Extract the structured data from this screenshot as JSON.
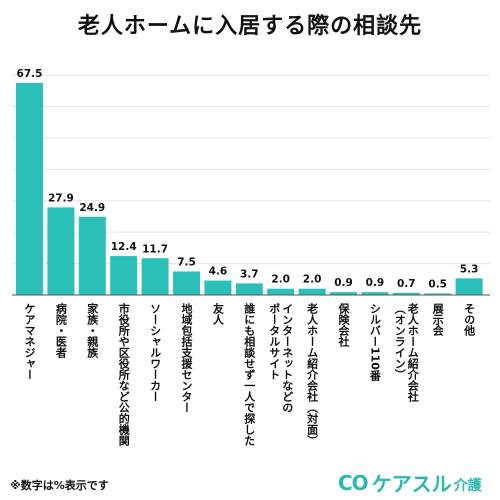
{
  "chart_data": {
    "type": "bar",
    "title": "老人ホームに入居する際の相談先",
    "categories": [
      [
        "ケアマネジャー"
      ],
      [
        "病院・医者"
      ],
      [
        "家族・親族"
      ],
      [
        "市役所や区役所など公的機関"
      ],
      [
        "ソーシャルワーカー"
      ],
      [
        "地域包括支援センター"
      ],
      [
        "友人"
      ],
      [
        "誰にも相談せず一人で探した"
      ],
      [
        "インターネットなどの",
        "ポータルサイト"
      ],
      [
        "老人ホーム紹介会社（対面）"
      ],
      [
        "保険会社"
      ],
      [
        "シルバー110番"
      ],
      [
        "老人ホーム紹介会社",
        "（オンライン）"
      ],
      [
        "展示会"
      ],
      [
        "その他"
      ]
    ],
    "values": [
      67.5,
      27.9,
      24.9,
      12.4,
      11.7,
      7.5,
      4.6,
      3.7,
      2.0,
      2.0,
      0.9,
      0.9,
      0.7,
      0.5,
      5.3
    ],
    "value_labels": [
      "67.5",
      "27.9",
      "24.9",
      "12.4",
      "11.7",
      "7.5",
      "4.6",
      "3.7",
      "2.0",
      "2.0",
      "0.9",
      "0.9",
      "0.7",
      "0.5",
      "5.3"
    ],
    "ylim": [
      0,
      70
    ],
    "grid": true,
    "bar_color": "#2bbfb9"
  },
  "footnote": "※数字は%表示です",
  "brand": {
    "mark": "CO",
    "name": "ケアスル",
    "suffix": "介護"
  }
}
